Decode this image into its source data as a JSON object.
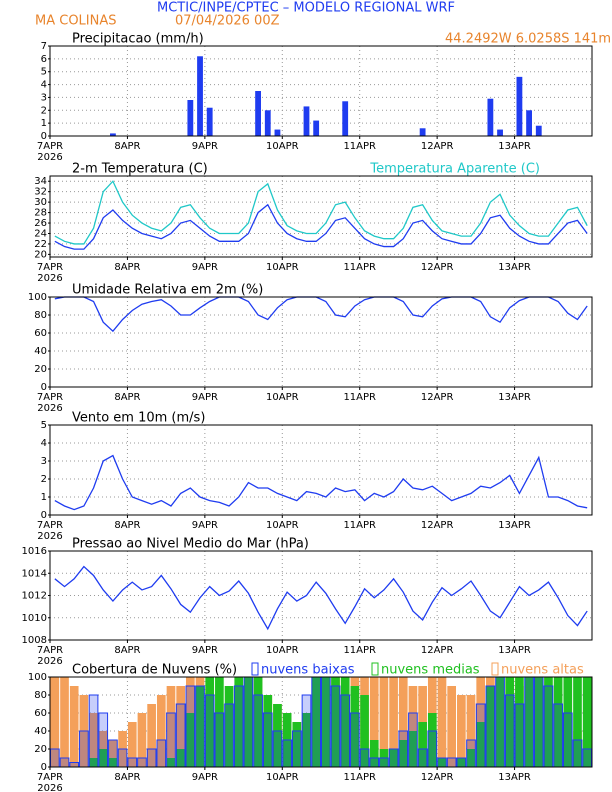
{
  "header": {
    "title": "MCTIC/INPE/CPTEC – MODELO REGIONAL WRF",
    "location": "MA COLINAS",
    "datetime": "07/04/2026 00Z",
    "coords": "44.2492W 6.0258S 141m"
  },
  "chart_data": [
    {
      "type": "bar",
      "title": "Precipitacao (mm/h)",
      "x_sublabel": "2026",
      "categories": [
        "7APR",
        null,
        null,
        null,
        null,
        null,
        null,
        null,
        "8APR",
        null,
        null,
        null,
        null,
        null,
        null,
        null,
        "9APR",
        null,
        null,
        null,
        null,
        null,
        null,
        null,
        "10APR",
        null,
        null,
        null,
        null,
        null,
        null,
        null,
        "11APR",
        null,
        null,
        null,
        null,
        null,
        null,
        null,
        "12APR",
        null,
        null,
        null,
        null,
        null,
        null,
        null,
        "13APR",
        null,
        null,
        null,
        null,
        null,
        null,
        null
      ],
      "series": [
        {
          "color": "#1f3cf0",
          "values": [
            0,
            0,
            0,
            0,
            0,
            0,
            0.2,
            0,
            0,
            0,
            0,
            0,
            0,
            0,
            2.8,
            6.2,
            2.2,
            0,
            0,
            0,
            0,
            3.5,
            2.0,
            0.5,
            0,
            0,
            2.3,
            1.2,
            0,
            0,
            2.7,
            0,
            0,
            0,
            0,
            0,
            0,
            0,
            0.6,
            0,
            0,
            0,
            0,
            0,
            0,
            2.9,
            0.5,
            0,
            4.6,
            2.0,
            0.8,
            0,
            0,
            0,
            0,
            0
          ]
        }
      ],
      "ylim": [
        0,
        7
      ],
      "yticks": [
        0,
        1,
        2,
        3,
        4,
        5,
        6,
        7
      ],
      "grid": true
    },
    {
      "type": "line",
      "title": "2-m Temperatura (C)",
      "x_sublabel": "2026",
      "categories": [
        "7APR",
        null,
        null,
        null,
        null,
        null,
        null,
        null,
        "8APR",
        null,
        null,
        null,
        null,
        null,
        null,
        null,
        "9APR",
        null,
        null,
        null,
        null,
        null,
        null,
        null,
        "10APR",
        null,
        null,
        null,
        null,
        null,
        null,
        null,
        "11APR",
        null,
        null,
        null,
        null,
        null,
        null,
        null,
        "12APR",
        null,
        null,
        null,
        null,
        null,
        null,
        null,
        "13APR",
        null,
        null,
        null,
        null,
        null,
        null,
        null
      ],
      "series": [
        {
          "color": "#1f3cf0",
          "values": [
            22.5,
            21.5,
            21,
            21,
            23,
            27,
            28.5,
            26.5,
            25,
            24,
            23.5,
            23,
            24,
            26,
            26.5,
            25,
            23.5,
            22.5,
            22.5,
            22.5,
            24,
            28,
            29.5,
            26,
            24,
            23,
            22.5,
            22.5,
            24,
            26.5,
            27,
            25,
            23,
            22,
            21.5,
            21.5,
            23,
            26,
            26.5,
            24.5,
            23,
            22.5,
            22,
            22,
            24,
            27,
            27.5,
            25,
            23.5,
            22.5,
            22,
            22,
            24,
            26,
            26.5,
            24
          ]
        },
        {
          "name": "Temperatura Aparente (C)",
          "color": "#20c8c8",
          "values": [
            23.5,
            22.5,
            22,
            22,
            25,
            32,
            34,
            30,
            27.5,
            26,
            25,
            24.5,
            26,
            29,
            29.5,
            27,
            25,
            24,
            24,
            24,
            26,
            32,
            33.5,
            28.5,
            25.5,
            24.5,
            24,
            24,
            26,
            29.5,
            30,
            27,
            24.5,
            23.5,
            23,
            23,
            25,
            29,
            29.5,
            26.5,
            24.5,
            24,
            23.5,
            23.5,
            26,
            30,
            31.5,
            27.5,
            25.5,
            24,
            23.5,
            23.5,
            26,
            28.5,
            29,
            25.5
          ]
        }
      ],
      "ylim": [
        19.5,
        35
      ],
      "yticks": [
        20,
        22,
        24,
        26,
        28,
        30,
        32,
        34
      ],
      "grid": true
    },
    {
      "type": "line",
      "title": "Umidade Relativa em 2m (%)",
      "x_sublabel": "2026",
      "categories": [
        "7APR",
        null,
        null,
        null,
        null,
        null,
        null,
        null,
        "8APR",
        null,
        null,
        null,
        null,
        null,
        null,
        null,
        "9APR",
        null,
        null,
        null,
        null,
        null,
        null,
        null,
        "10APR",
        null,
        null,
        null,
        null,
        null,
        null,
        null,
        "11APR",
        null,
        null,
        null,
        null,
        null,
        null,
        null,
        "12APR",
        null,
        null,
        null,
        null,
        null,
        null,
        null,
        "13APR",
        null,
        null,
        null,
        null,
        null,
        null,
        null
      ],
      "series": [
        {
          "color": "#1f3cf0",
          "values": [
            98,
            100,
            100,
            100,
            95,
            72,
            62,
            75,
            85,
            92,
            95,
            97,
            90,
            80,
            80,
            88,
            95,
            100,
            100,
            100,
            95,
            80,
            75,
            88,
            97,
            100,
            100,
            100,
            95,
            80,
            78,
            90,
            97,
            100,
            100,
            100,
            95,
            80,
            78,
            90,
            98,
            100,
            100,
            100,
            95,
            78,
            72,
            88,
            96,
            100,
            100,
            100,
            95,
            82,
            75,
            90
          ]
        }
      ],
      "ylim": [
        0,
        100
      ],
      "yticks": [
        0,
        20,
        40,
        60,
        80,
        100
      ],
      "grid": true
    },
    {
      "type": "line",
      "title": "Vento em 10m (m/s)",
      "x_sublabel": "2026",
      "categories": [
        "7APR",
        null,
        null,
        null,
        null,
        null,
        null,
        null,
        "8APR",
        null,
        null,
        null,
        null,
        null,
        null,
        null,
        "9APR",
        null,
        null,
        null,
        null,
        null,
        null,
        null,
        "10APR",
        null,
        null,
        null,
        null,
        null,
        null,
        null,
        "11APR",
        null,
        null,
        null,
        null,
        null,
        null,
        null,
        "12APR",
        null,
        null,
        null,
        null,
        null,
        null,
        null,
        "13APR",
        null,
        null,
        null,
        null,
        null,
        null,
        null
      ],
      "series": [
        {
          "color": "#1f3cf0",
          "values": [
            0.8,
            0.5,
            0.3,
            0.5,
            1.5,
            3,
            3.3,
            2,
            1,
            0.8,
            0.6,
            0.8,
            0.5,
            1.2,
            1.5,
            1,
            0.8,
            0.7,
            0.5,
            1,
            1.8,
            1.5,
            1.5,
            1.2,
            1,
            0.8,
            1.3,
            1.2,
            1,
            1.5,
            1.3,
            1.4,
            0.8,
            1.2,
            1,
            1.3,
            2,
            1.5,
            1.4,
            1.6,
            1.2,
            0.8,
            1,
            1.2,
            1.6,
            1.5,
            1.8,
            2.2,
            1.2,
            2.2,
            3.2,
            1,
            1,
            0.8,
            0.5,
            0.4
          ]
        }
      ],
      "ylim": [
        0,
        5
      ],
      "yticks": [
        0,
        1,
        2,
        3,
        4,
        5
      ],
      "grid": true
    },
    {
      "type": "line",
      "title": "Pressao ao Nivel Medio do Mar (hPa)",
      "x_sublabel": "2026",
      "categories": [
        "7APR",
        null,
        null,
        null,
        null,
        null,
        null,
        null,
        "8APR",
        null,
        null,
        null,
        null,
        null,
        null,
        null,
        "9APR",
        null,
        null,
        null,
        null,
        null,
        null,
        null,
        "10APR",
        null,
        null,
        null,
        null,
        null,
        null,
        null,
        "11APR",
        null,
        null,
        null,
        null,
        null,
        null,
        null,
        "12APR",
        null,
        null,
        null,
        null,
        null,
        null,
        null,
        "13APR",
        null,
        null,
        null,
        null,
        null,
        null,
        null
      ],
      "series": [
        {
          "color": "#1f3cf0",
          "values": [
            1013.5,
            1012.8,
            1013.5,
            1014.6,
            1013.8,
            1012.5,
            1011.5,
            1012.5,
            1013.2,
            1012.5,
            1012.8,
            1013.8,
            1012.6,
            1011.2,
            1010.5,
            1011.8,
            1012.8,
            1012.0,
            1012.4,
            1013.3,
            1012.2,
            1010.5,
            1009.0,
            1010.8,
            1012.3,
            1011.5,
            1012.0,
            1013.2,
            1012.2,
            1010.8,
            1009.5,
            1011.0,
            1012.6,
            1011.8,
            1012.5,
            1013.5,
            1012.3,
            1010.6,
            1009.8,
            1011.4,
            1012.7,
            1012.0,
            1012.6,
            1013.3,
            1012.0,
            1010.6,
            1010.0,
            1011.4,
            1012.8,
            1012.0,
            1012.5,
            1013.2,
            1011.8,
            1010.2,
            1009.3,
            1010.6
          ]
        }
      ],
      "ylim": [
        1008,
        1016
      ],
      "yticks": [
        1008,
        1010,
        1012,
        1014,
        1016
      ],
      "grid": true
    },
    {
      "type": "cloud",
      "title": "Cobertura de Nuvens (%)",
      "x_sublabel": "2026",
      "categories": [
        "7APR",
        null,
        null,
        null,
        null,
        null,
        null,
        null,
        "8APR",
        null,
        null,
        null,
        null,
        null,
        null,
        null,
        "9APR",
        null,
        null,
        null,
        null,
        null,
        null,
        null,
        "10APR",
        null,
        null,
        null,
        null,
        null,
        null,
        null,
        "11APR",
        null,
        null,
        null,
        null,
        null,
        null,
        null,
        "12APR",
        null,
        null,
        null,
        null,
        null,
        null,
        null,
        "13APR",
        null,
        null,
        null,
        null,
        null,
        null,
        null
      ],
      "series": [
        {
          "name": "nuvens altas",
          "color": "#f4a05a",
          "values": [
            100,
            100,
            90,
            80,
            60,
            40,
            30,
            40,
            50,
            60,
            70,
            80,
            90,
            90,
            100,
            100,
            90,
            70,
            60,
            80,
            100,
            100,
            80,
            70,
            60,
            50,
            40,
            60,
            90,
            100,
            100,
            100,
            100,
            100,
            100,
            100,
            100,
            90,
            90,
            100,
            100,
            90,
            80,
            80,
            100,
            100,
            100,
            100,
            90,
            80,
            70,
            60,
            50,
            40,
            40,
            30
          ]
        },
        {
          "name": "nuvens medias",
          "color": "#20c020",
          "values": [
            0,
            0,
            0,
            0,
            10,
            20,
            10,
            0,
            0,
            0,
            0,
            0,
            10,
            20,
            60,
            90,
            100,
            100,
            90,
            100,
            100,
            100,
            80,
            70,
            60,
            50,
            60,
            100,
            100,
            100,
            100,
            90,
            80,
            30,
            20,
            20,
            30,
            40,
            50,
            60,
            10,
            0,
            10,
            20,
            50,
            90,
            100,
            100,
            100,
            100,
            100,
            100,
            100,
            100,
            100,
            100
          ]
        },
        {
          "name": "nuvens baixas",
          "color": "#1f3cf0",
          "values": [
            20,
            10,
            5,
            40,
            80,
            60,
            30,
            20,
            10,
            10,
            20,
            30,
            60,
            70,
            90,
            90,
            80,
            60,
            70,
            90,
            100,
            80,
            60,
            40,
            30,
            40,
            80,
            100,
            100,
            90,
            80,
            60,
            20,
            10,
            10,
            20,
            40,
            60,
            20,
            40,
            10,
            10,
            10,
            30,
            70,
            90,
            100,
            80,
            70,
            100,
            100,
            90,
            70,
            60,
            30,
            20
          ]
        }
      ],
      "ylim": [
        0,
        100
      ],
      "yticks": [
        0,
        20,
        40,
        60,
        80,
        100
      ],
      "grid": true
    }
  ]
}
